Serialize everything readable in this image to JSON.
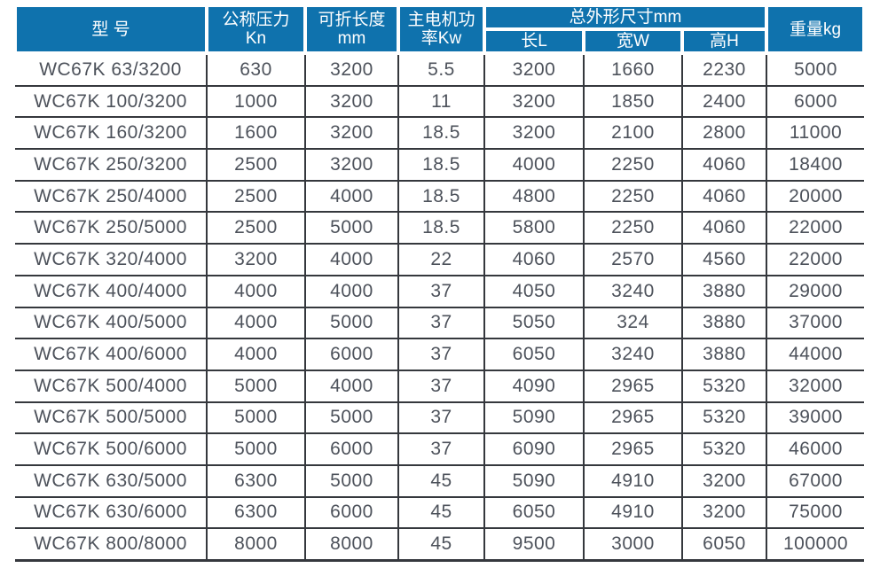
{
  "table": {
    "title_semantic": "WC67K press brake specification table",
    "colors": {
      "header_bg": "#0f72ad",
      "header_text": "#ffffff",
      "body_text": "#4d525b",
      "grid_line": "#35383d"
    },
    "headers": {
      "model": "型 号",
      "pressure": "公称压力\nKn",
      "fold_length": "可折长度\nmm",
      "motor_power": "主电机功\n率Kw",
      "dimensions_group": "总外形尺寸mm",
      "dim_length": "长L",
      "dim_width": "宽W",
      "dim_height": "高H",
      "weight": "重量kg"
    },
    "rows": [
      [
        "WC67K 63/3200",
        "630",
        "3200",
        "5.5",
        "3200",
        "1660",
        "2230",
        "5000"
      ],
      [
        "WC67K 100/3200",
        "1000",
        "3200",
        "11",
        "3200",
        "1850",
        "2400",
        "6000"
      ],
      [
        "WC67K 160/3200",
        "1600",
        "3200",
        "18.5",
        "3200",
        "2100",
        "2800",
        "11000"
      ],
      [
        "WC67K 250/3200",
        "2500",
        "3200",
        "18.5",
        "4000",
        "2250",
        "4060",
        "18400"
      ],
      [
        "WC67K 250/4000",
        "2500",
        "4000",
        "18.5",
        "4800",
        "2250",
        "4060",
        "20000"
      ],
      [
        "WC67K 250/5000",
        "2500",
        "5000",
        "18.5",
        "5800",
        "2250",
        "4060",
        "22000"
      ],
      [
        "WC67K 320/4000",
        "3200",
        "4000",
        "22",
        "4060",
        "2570",
        "4560",
        "22000"
      ],
      [
        "WC67K 400/4000",
        "4000",
        "4000",
        "37",
        "4050",
        "3240",
        "3880",
        "29000"
      ],
      [
        "WC67K 400/5000",
        "4000",
        "5000",
        "37",
        "5050",
        "324",
        "3880",
        "37000"
      ],
      [
        "WC67K 400/6000",
        "4000",
        "6000",
        "37",
        "6050",
        "3240",
        "3880",
        "44000"
      ],
      [
        "WC67K 500/4000",
        "5000",
        "4000",
        "37",
        "4090",
        "2965",
        "5320",
        "32000"
      ],
      [
        "WC67K 500/5000",
        "5000",
        "5000",
        "37",
        "5090",
        "2965",
        "5320",
        "39000"
      ],
      [
        "WC67K 500/6000",
        "5000",
        "6000",
        "37",
        "6090",
        "2965",
        "5320",
        "46000"
      ],
      [
        "WC67K 630/5000",
        "6300",
        "5000",
        "45",
        "5090",
        "4910",
        "3200",
        "67000"
      ],
      [
        "WC67K 630/6000",
        "6300",
        "6000",
        "45",
        "6050",
        "4910",
        "3200",
        "75000"
      ],
      [
        "WC67K 800/8000",
        "8000",
        "8000",
        "45",
        "9500",
        "3000",
        "6050",
        "100000"
      ]
    ]
  }
}
